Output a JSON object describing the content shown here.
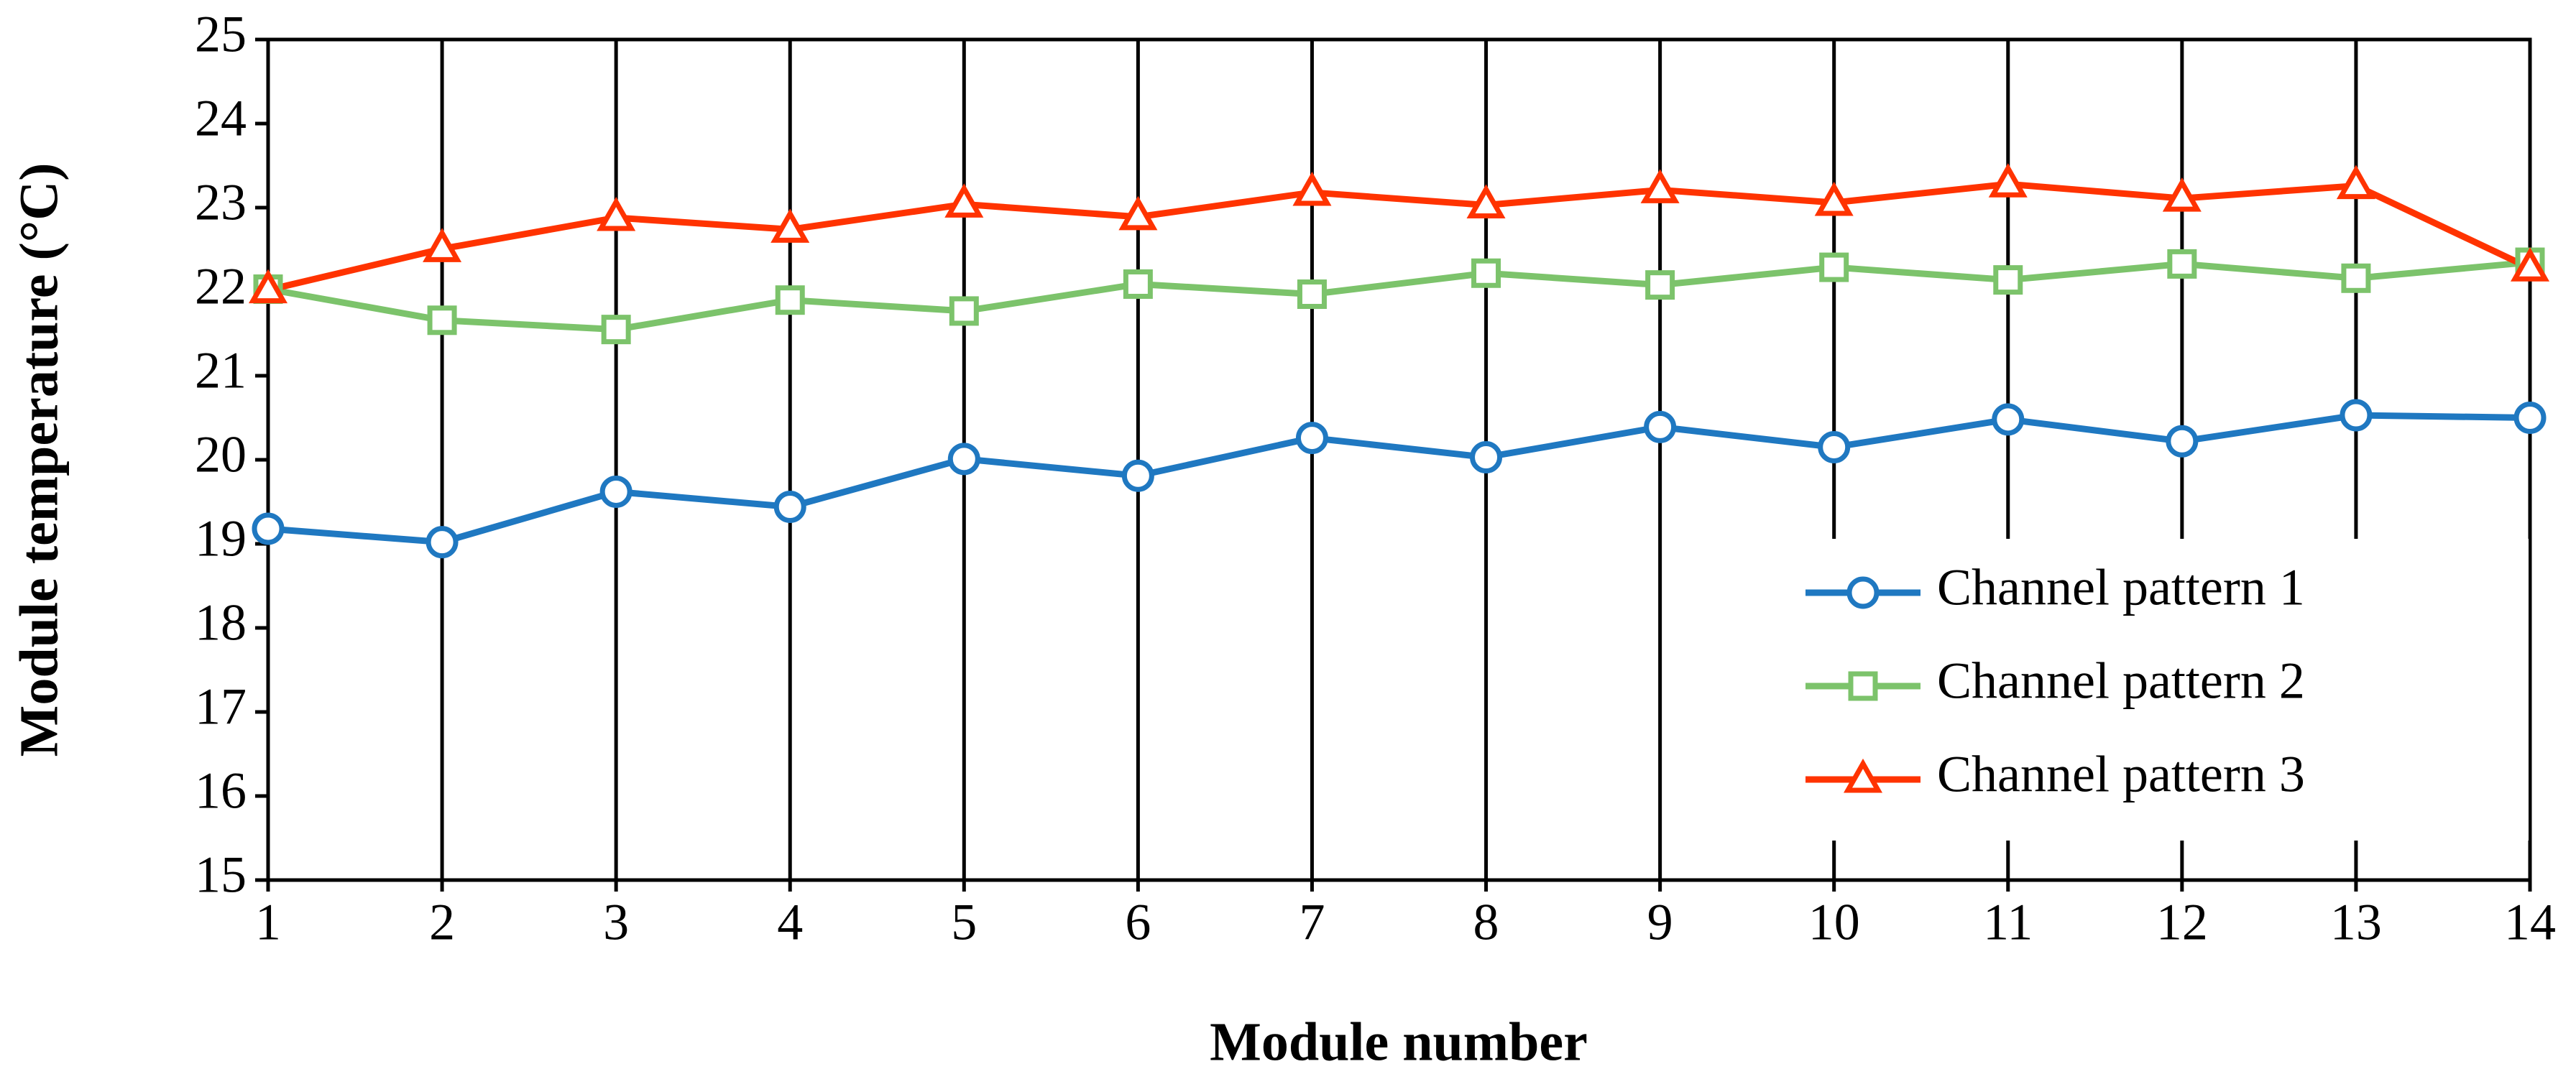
{
  "chart_data": {
    "type": "line",
    "x_label": "Module number",
    "y_label": "Module temperature (°C)",
    "x": [
      1,
      2,
      3,
      4,
      5,
      6,
      7,
      8,
      9,
      10,
      11,
      12,
      13,
      14
    ],
    "xlim": [
      1,
      14
    ],
    "xticks": [
      1,
      2,
      3,
      4,
      5,
      6,
      7,
      8,
      9,
      10,
      11,
      12,
      13,
      14
    ],
    "ylim": [
      15,
      25
    ],
    "yticks": [
      15,
      16,
      17,
      18,
      19,
      20,
      21,
      22,
      23,
      24,
      25
    ],
    "grid": "x",
    "legend": "lower right",
    "series": [
      {
        "name": "Channel pattern 1",
        "color": "#1f78c1",
        "marker": "circle",
        "values": [
          19.18,
          19.02,
          19.62,
          19.44,
          20.01,
          19.81,
          20.26,
          20.03,
          20.39,
          20.15,
          20.48,
          20.22,
          20.53,
          20.5
        ]
      },
      {
        "name": "Channel pattern 2",
        "color": "#7cc36b",
        "marker": "square",
        "values": [
          22.03,
          21.66,
          21.55,
          21.9,
          21.77,
          22.09,
          21.97,
          22.22,
          22.08,
          22.29,
          22.14,
          22.33,
          22.16,
          22.35
        ]
      },
      {
        "name": "Channel pattern 3",
        "color": "#ff3300",
        "marker": "triangle",
        "values": [
          22.02,
          22.51,
          22.88,
          22.74,
          23.04,
          22.89,
          23.18,
          23.03,
          23.21,
          23.06,
          23.28,
          23.11,
          23.26,
          22.28
        ]
      }
    ]
  }
}
